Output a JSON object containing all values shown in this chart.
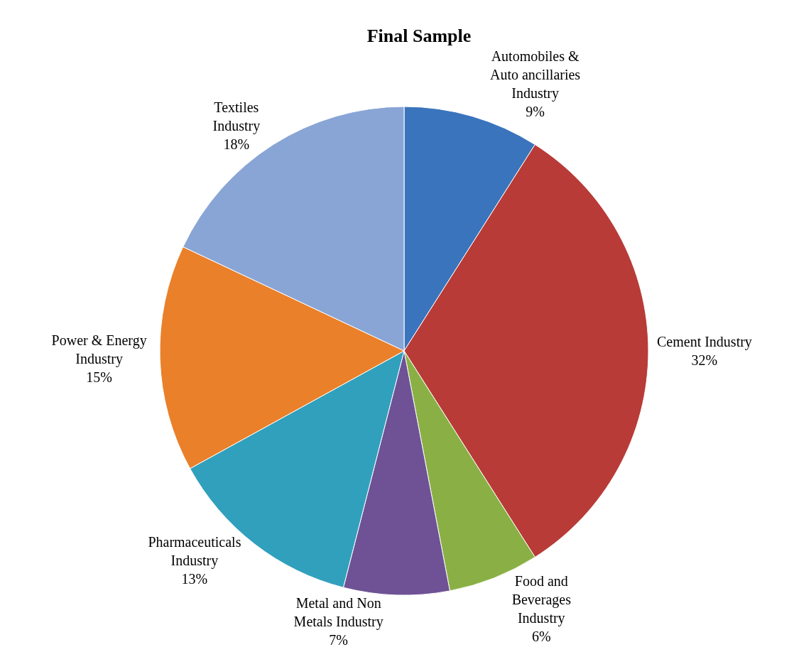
{
  "chart_data": {
    "type": "pie",
    "title": "Final Sample",
    "categories": [
      "Automobiles & Auto ancillaries Industry",
      "Cement Industry",
      "Food and Beverages Industry",
      "Metal and Non Metals Industry",
      "Pharmaceuticals Industry",
      "Power & Energy Industry",
      "Textiles Industry"
    ],
    "values": [
      9,
      32,
      6,
      7,
      13,
      15,
      18
    ],
    "value_labels": [
      "9%",
      "32%",
      "6%",
      "7%",
      "13%",
      "15%",
      "18%"
    ],
    "colors": [
      "#3a74bd",
      "#b83b37",
      "#8ab045",
      "#6f5295",
      "#31a0bd",
      "#ea8029",
      "#89a5d6"
    ],
    "legend": false
  }
}
